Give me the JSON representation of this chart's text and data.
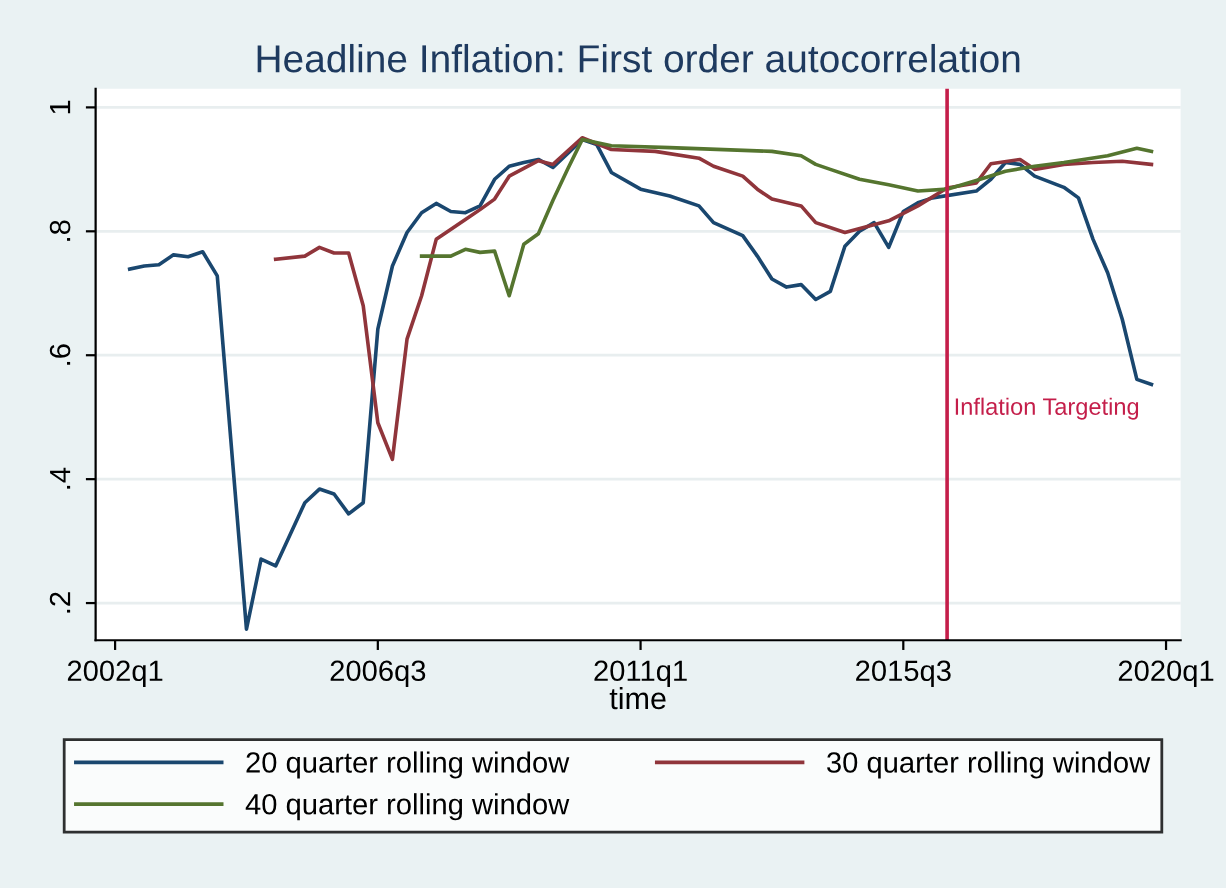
{
  "chart_data": {
    "type": "line",
    "title": "Headline Inflation: First order autocorrelation",
    "xlabel": "time",
    "xlim": [
      "2001-09",
      "2020-04"
    ],
    "xticks": [
      {
        "value": "2002-01",
        "label": "2002q1"
      },
      {
        "value": "2006-07",
        "label": "2006q3"
      },
      {
        "value": "2011-01",
        "label": "2011q1"
      },
      {
        "value": "2015-07",
        "label": "2015q3"
      },
      {
        "value": "2020-01",
        "label": "2020q1"
      }
    ],
    "ylim": [
      0.14,
      1.03
    ],
    "yticks": [
      {
        "value": 0.2,
        "label": ".2"
      },
      {
        "value": 0.4,
        "label": ".4"
      },
      {
        "value": 0.6,
        "label": ".6"
      },
      {
        "value": 0.8,
        "label": ".8"
      },
      {
        "value": 1,
        "label": "1"
      }
    ],
    "grid": "y",
    "legend": "bottom",
    "marker": "none",
    "line_style": "solid",
    "ref_lines": [
      {
        "axis": "x",
        "value": "2016-04",
        "label": "Inflation Targeting",
        "color": "#c41e4a"
      }
    ],
    "series": [
      {
        "name": "20 quarter rolling window",
        "color": "#1a476f",
        "x": [
          "2002-04",
          "2002-07",
          "2002-10",
          "2003-01",
          "2003-04",
          "2003-07",
          "2003-10",
          "2004-04",
          "2004-07",
          "2004-10",
          "2005-04",
          "2005-07",
          "2005-10",
          "2006-01",
          "2006-04",
          "2006-07",
          "2006-10",
          "2007-01",
          "2007-04",
          "2007-07",
          "2007-10",
          "2008-01",
          "2008-04",
          "2008-07",
          "2008-10",
          "2009-01",
          "2009-04",
          "2009-07",
          "2010-01",
          "2010-04",
          "2010-07",
          "2011-01",
          "2011-07",
          "2012-01",
          "2012-04",
          "2012-10",
          "2013-01",
          "2013-04",
          "2013-07",
          "2013-10",
          "2014-01",
          "2014-04",
          "2014-07",
          "2014-10",
          "2015-01",
          "2015-04",
          "2015-07",
          "2015-10",
          "2016-01",
          "2016-10",
          "2017-01",
          "2017-04",
          "2017-07",
          "2017-10",
          "2018-04",
          "2018-07",
          "2018-10",
          "2019-01",
          "2019-04",
          "2019-07",
          "2019-10"
        ],
        "values": [
          0.739,
          0.744,
          0.746,
          0.762,
          0.759,
          0.767,
          0.728,
          0.158,
          0.271,
          0.26,
          0.362,
          0.384,
          0.376,
          0.344,
          0.362,
          0.642,
          0.744,
          0.798,
          0.83,
          0.845,
          0.832,
          0.83,
          0.841,
          0.884,
          0.905,
          0.911,
          0.916,
          0.903,
          0.948,
          0.94,
          0.895,
          0.868,
          0.857,
          0.841,
          0.814,
          0.793,
          0.76,
          0.723,
          0.71,
          0.714,
          0.69,
          0.703,
          0.776,
          0.8,
          0.814,
          0.774,
          0.832,
          0.846,
          0.854,
          0.865,
          0.884,
          0.911,
          0.908,
          0.889,
          0.871,
          0.854,
          0.787,
          0.733,
          0.658,
          0.561,
          0.553
        ]
      },
      {
        "name": "30 quarter rolling window",
        "color": "#90353b",
        "x": [
          "2004-10",
          "2005-04",
          "2005-07",
          "2005-10",
          "2006-01",
          "2006-04",
          "2006-07",
          "2006-10",
          "2007-01",
          "2007-04",
          "2007-07",
          "2008-01",
          "2008-04",
          "2008-07",
          "2008-10",
          "2009-04",
          "2009-07",
          "2010-01",
          "2010-07",
          "2011-04",
          "2012-01",
          "2012-04",
          "2012-10",
          "2013-01",
          "2013-04",
          "2013-10",
          "2014-01",
          "2014-07",
          "2015-04",
          "2015-10",
          "2016-04",
          "2016-10",
          "2017-01",
          "2017-07",
          "2017-10",
          "2018-04",
          "2018-10",
          "2019-04",
          "2019-10"
        ],
        "values": [
          0.755,
          0.76,
          0.774,
          0.765,
          0.765,
          0.68,
          0.491,
          0.432,
          0.626,
          0.696,
          0.787,
          0.819,
          0.835,
          0.852,
          0.889,
          0.914,
          0.908,
          0.951,
          0.932,
          0.929,
          0.918,
          0.905,
          0.889,
          0.868,
          0.852,
          0.841,
          0.814,
          0.798,
          0.817,
          0.841,
          0.87,
          0.878,
          0.909,
          0.916,
          0.9,
          0.908,
          0.911,
          0.913,
          0.908
        ]
      },
      {
        "name": "40 quarter rolling window",
        "color": "#55752f",
        "x": [
          "2007-04",
          "2007-10",
          "2008-01",
          "2008-04",
          "2008-07",
          "2008-10",
          "2009-01",
          "2009-04",
          "2009-07",
          "2009-10",
          "2010-01",
          "2010-07",
          "2011-07",
          "2013-04",
          "2013-10",
          "2014-01",
          "2014-04",
          "2014-10",
          "2015-04",
          "2015-10",
          "2016-04",
          "2016-10",
          "2017-04",
          "2017-10",
          "2018-04",
          "2019-01",
          "2019-07",
          "2019-10"
        ],
        "values": [
          0.76,
          0.76,
          0.771,
          0.766,
          0.768,
          0.696,
          0.779,
          0.796,
          0.85,
          0.9,
          0.948,
          0.938,
          0.935,
          0.929,
          0.922,
          0.908,
          0.9,
          0.884,
          0.875,
          0.865,
          0.868,
          0.882,
          0.897,
          0.905,
          0.911,
          0.922,
          0.934,
          0.929
        ]
      }
    ]
  }
}
